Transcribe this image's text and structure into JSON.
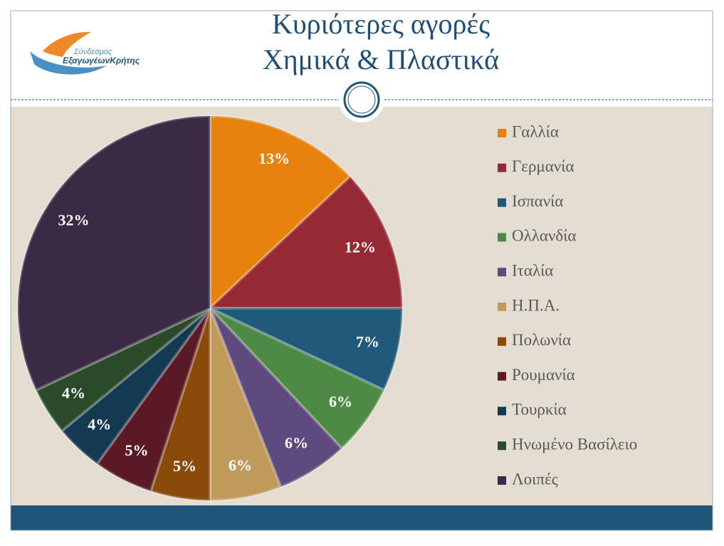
{
  "logo": [
    "Σύνδεσμος",
    "ΕξαγωγέωνΚρήτης"
  ],
  "chart_data": {
    "type": "pie",
    "title": [
      "Κυριότερες αγορές",
      "Χημικά & Πλαστικά"
    ],
    "categories": [
      "Γαλλία",
      "Γερμανία",
      "Ισπανία",
      "Ολλανδία",
      "Ιταλία",
      "Η.Π.Α.",
      "Πολωνία",
      "Ρουμανία",
      "Τουρκία",
      "Ηνωμένο Βασίλειο",
      "Λοιπές"
    ],
    "values": [
      13,
      12,
      7,
      6,
      6,
      6,
      5,
      5,
      4,
      4,
      32
    ],
    "value_labels": [
      "13%",
      "12%",
      "7%",
      "6%",
      "6%",
      "6%",
      "5%",
      "5%",
      "4%",
      "4%",
      "32%"
    ],
    "colors": [
      "#e8820e",
      "#952a35",
      "#1f5a7a",
      "#4e8a45",
      "#5e4a7c",
      "#c09a5a",
      "#8a4a0a",
      "#5a1a25",
      "#143a52",
      "#2a4a2a",
      "#3a2a45"
    ],
    "legend": "right"
  }
}
